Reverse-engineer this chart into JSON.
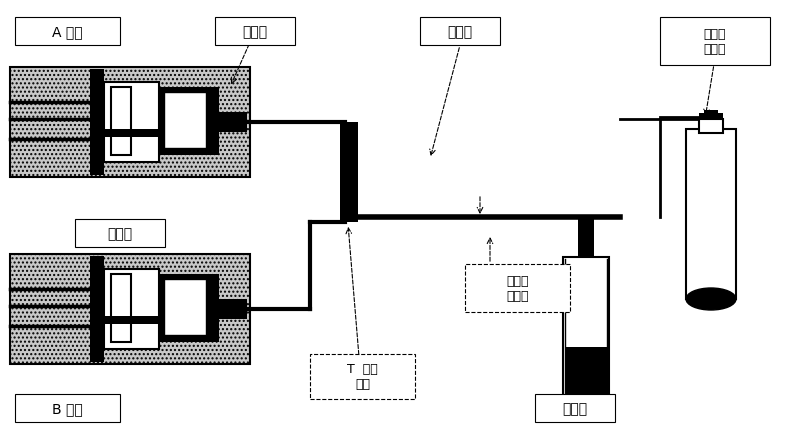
{
  "labels": {
    "A_solution": "A 溶液",
    "syringe_label": "注射器",
    "pump": "注射泵",
    "B_solution": "B 溶液",
    "T_connector": "T  型连\n接器",
    "capillary": "毛细管",
    "temp_control": "温度控\n制区域",
    "collector": "收集器",
    "pressure": "附加压\n力装置"
  },
  "colors": {
    "black": "#000000",
    "white": "#ffffff",
    "hatch": "#b0b0b0",
    "gray": "#999999"
  }
}
